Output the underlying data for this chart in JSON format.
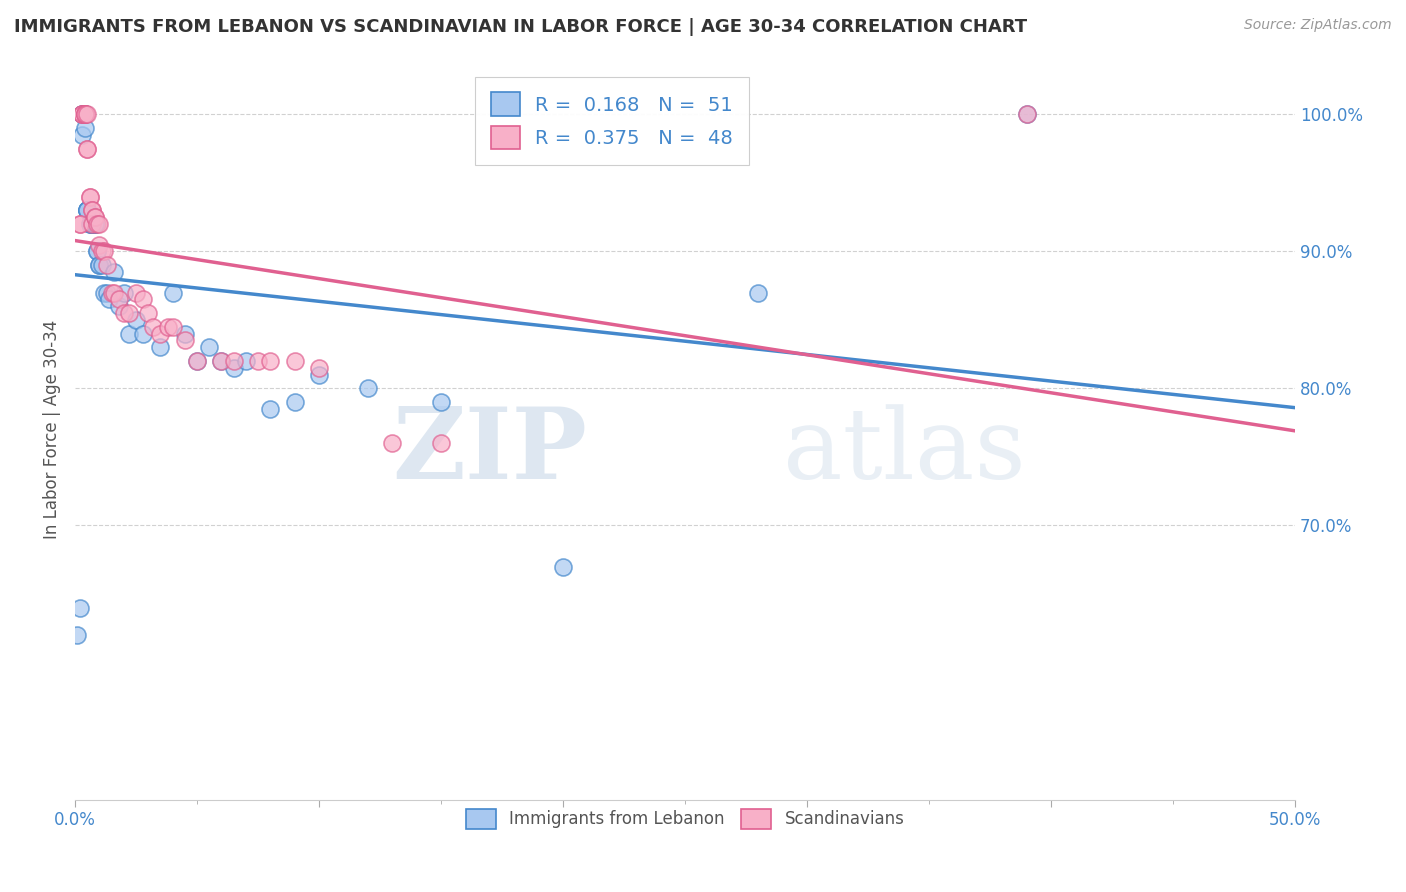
{
  "title": "IMMIGRANTS FROM LEBANON VS SCANDINAVIAN IN LABOR FORCE | AGE 30-34 CORRELATION CHART",
  "source": "Source: ZipAtlas.com",
  "ylabel": "In Labor Force | Age 30-34",
  "xlim": [
    0.0,
    0.5
  ],
  "ylim": [
    0.5,
    1.04
  ],
  "xtick_vals": [
    0.0,
    0.5
  ],
  "xtick_labels": [
    "0.0%",
    "50.0%"
  ],
  "yticks": [
    0.7,
    0.8,
    0.9,
    1.0
  ],
  "ytick_labels": [
    "70.0%",
    "80.0%",
    "90.0%",
    "100.0%"
  ],
  "legend_label1": "Immigrants from Lebanon",
  "legend_label2": "Scandinavians",
  "R1": 0.168,
  "N1": 51,
  "R2": 0.375,
  "N2": 48,
  "color1": "#A8C8F0",
  "color2": "#F8B0C8",
  "line_color1": "#4488CC",
  "line_color2": "#E06090",
  "watermark_zip": "ZIP",
  "watermark_atlas": "atlas",
  "blue_x": [
    0.001,
    0.002,
    0.003,
    0.003,
    0.003,
    0.004,
    0.004,
    0.004,
    0.005,
    0.005,
    0.005,
    0.005,
    0.006,
    0.006,
    0.007,
    0.007,
    0.007,
    0.007,
    0.008,
    0.008,
    0.008,
    0.009,
    0.009,
    0.01,
    0.01,
    0.011,
    0.012,
    0.013,
    0.014,
    0.016,
    0.018,
    0.02,
    0.022,
    0.025,
    0.028,
    0.035,
    0.04,
    0.045,
    0.05,
    0.055,
    0.06,
    0.065,
    0.07,
    0.08,
    0.09,
    0.1,
    0.12,
    0.15,
    0.2,
    0.28,
    0.39
  ],
  "blue_y": [
    0.62,
    0.64,
    1.0,
    1.0,
    0.985,
    1.0,
    1.0,
    0.99,
    0.93,
    0.93,
    0.93,
    0.93,
    0.92,
    0.92,
    0.92,
    0.92,
    0.92,
    0.92,
    0.92,
    0.92,
    0.92,
    0.9,
    0.9,
    0.89,
    0.89,
    0.89,
    0.87,
    0.87,
    0.865,
    0.885,
    0.86,
    0.87,
    0.84,
    0.85,
    0.84,
    0.83,
    0.87,
    0.84,
    0.82,
    0.83,
    0.82,
    0.815,
    0.82,
    0.785,
    0.79,
    0.81,
    0.8,
    0.79,
    0.67,
    0.87,
    1.0
  ],
  "pink_x": [
    0.002,
    0.002,
    0.003,
    0.003,
    0.003,
    0.004,
    0.004,
    0.004,
    0.004,
    0.005,
    0.005,
    0.005,
    0.006,
    0.006,
    0.007,
    0.007,
    0.007,
    0.008,
    0.008,
    0.009,
    0.01,
    0.01,
    0.011,
    0.012,
    0.013,
    0.015,
    0.016,
    0.018,
    0.02,
    0.022,
    0.025,
    0.028,
    0.03,
    0.032,
    0.035,
    0.038,
    0.04,
    0.045,
    0.05,
    0.06,
    0.065,
    0.075,
    0.08,
    0.09,
    0.1,
    0.13,
    0.15,
    0.39
  ],
  "pink_y": [
    0.92,
    0.92,
    1.0,
    1.0,
    1.0,
    1.0,
    1.0,
    1.0,
    1.0,
    1.0,
    0.975,
    0.975,
    0.94,
    0.94,
    0.93,
    0.93,
    0.92,
    0.925,
    0.925,
    0.92,
    0.92,
    0.905,
    0.9,
    0.9,
    0.89,
    0.87,
    0.87,
    0.865,
    0.855,
    0.855,
    0.87,
    0.865,
    0.855,
    0.845,
    0.84,
    0.845,
    0.845,
    0.835,
    0.82,
    0.82,
    0.82,
    0.82,
    0.82,
    0.82,
    0.815,
    0.76,
    0.76,
    1.0
  ]
}
